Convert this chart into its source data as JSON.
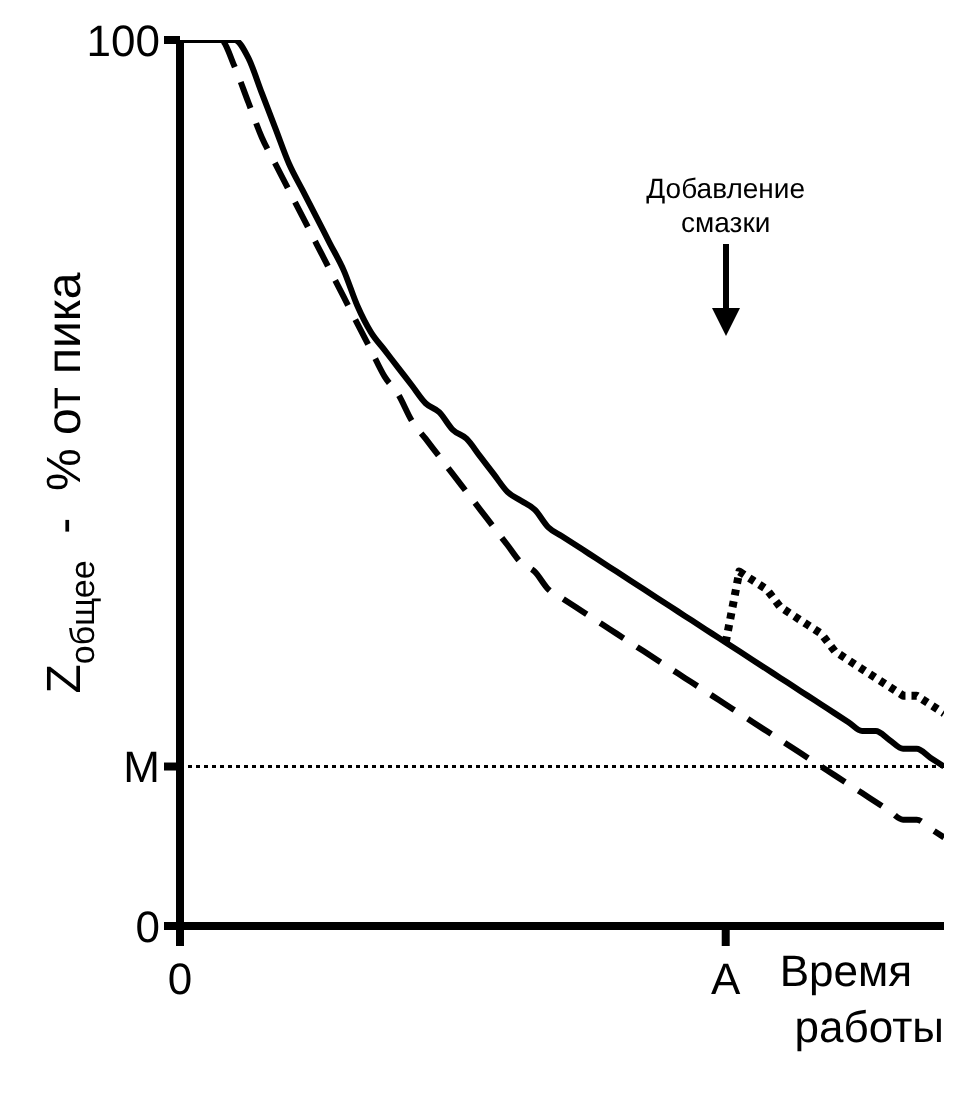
{
  "chart_data": {
    "type": "line",
    "xlabel": "Время работы",
    "ylabel": "Z$_{общее}$  -  % от пика",
    "categories": [
      "0",
      null,
      null,
      null,
      null,
      null,
      null,
      null,
      null,
      null,
      null,
      null,
      null,
      null,
      null,
      null,
      null,
      null,
      null,
      null,
      null,
      null,
      null,
      null,
      null,
      null,
      null,
      null,
      null,
      null,
      null,
      null,
      null,
      null,
      null,
      null,
      null,
      null,
      null,
      null,
      "A",
      null,
      null,
      null,
      null,
      null,
      null,
      null,
      null,
      null,
      null,
      null,
      null,
      null,
      null,
      null,
      null
    ],
    "ylim": [
      0,
      100
    ],
    "yticks": [
      0,
      {
        "value": 18,
        "label": "M"
      },
      100
    ],
    "series": [
      {
        "color": "#000000",
        "line_style": "solid",
        "values": [
          100,
          100,
          100,
          100,
          100,
          98,
          94,
          90,
          86,
          83,
          80,
          77,
          74,
          70,
          67,
          65,
          63,
          61,
          59,
          58,
          56,
          55,
          53,
          51,
          49,
          48,
          47,
          45,
          44,
          43,
          42,
          41,
          40,
          39,
          38,
          37,
          36,
          35,
          34,
          33,
          32,
          31,
          30,
          29,
          28,
          27,
          26,
          25,
          24,
          23,
          22,
          22,
          21,
          20,
          20,
          19,
          18
        ]
      },
      {
        "color": "#000000",
        "line_style": "dashed",
        "values": [
          100,
          100,
          100,
          100,
          97,
          93,
          89,
          86,
          83,
          80,
          77,
          74,
          71,
          68,
          65,
          62,
          60,
          57,
          55,
          53,
          51,
          49,
          47,
          45,
          43,
          41,
          40,
          38,
          37,
          36,
          35,
          34,
          33,
          32,
          31,
          30,
          29,
          28,
          27,
          26,
          25,
          24,
          23,
          22,
          21,
          20,
          19,
          18,
          17,
          16,
          15,
          14,
          13,
          12,
          12,
          11,
          10
        ]
      },
      {
        "color": "#000000",
        "line_style": "dotted",
        "values": [
          null,
          null,
          null,
          null,
          null,
          null,
          null,
          null,
          null,
          null,
          null,
          null,
          null,
          null,
          null,
          null,
          null,
          null,
          null,
          null,
          null,
          null,
          null,
          null,
          null,
          null,
          null,
          null,
          null,
          null,
          null,
          null,
          null,
          null,
          null,
          null,
          null,
          null,
          null,
          null,
          32,
          40,
          39,
          38,
          36,
          35,
          34,
          33,
          31,
          30,
          29,
          28,
          27,
          26,
          26,
          25,
          24
        ]
      }
    ],
    "ref_lines": [
      {
        "axis": "y",
        "value": 18,
        "color": "#000000",
        "line_style": "dotted"
      }
    ],
    "annotations": [
      "Добавление смазки"
    ],
    "marker": "none"
  }
}
